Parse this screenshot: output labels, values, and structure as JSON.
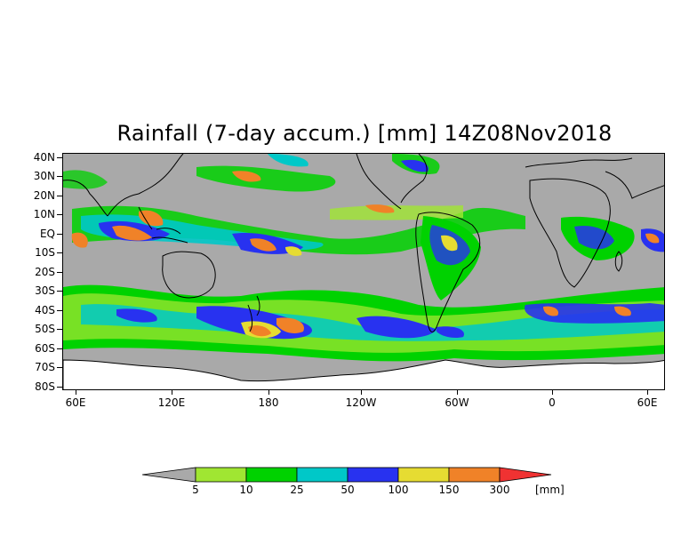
{
  "title": "Rainfall (7-day accum.) [mm] 14Z08Nov2018",
  "lat_labels": [
    "40N",
    "30N",
    "20N",
    "10N",
    "EQ",
    "10S",
    "20S",
    "30S",
    "40S",
    "50S",
    "60S",
    "70S",
    "80S"
  ],
  "lon_labels": [
    "60E",
    "120E",
    "180",
    "120W",
    "60W",
    "0",
    "60E"
  ],
  "legend": {
    "unit": "[mm]",
    "thresholds": [
      "5",
      "10",
      "25",
      "50",
      "100",
      "150",
      "300"
    ],
    "colors": [
      "#a9a9a9",
      "#a0e632",
      "#00d200",
      "#00c8c8",
      "#2832f0",
      "#e6dc32",
      "#f08228",
      "#f03232"
    ]
  },
  "colors": {
    "land_sea_nodata": "#a9a9a9",
    "outline": "#000000"
  }
}
